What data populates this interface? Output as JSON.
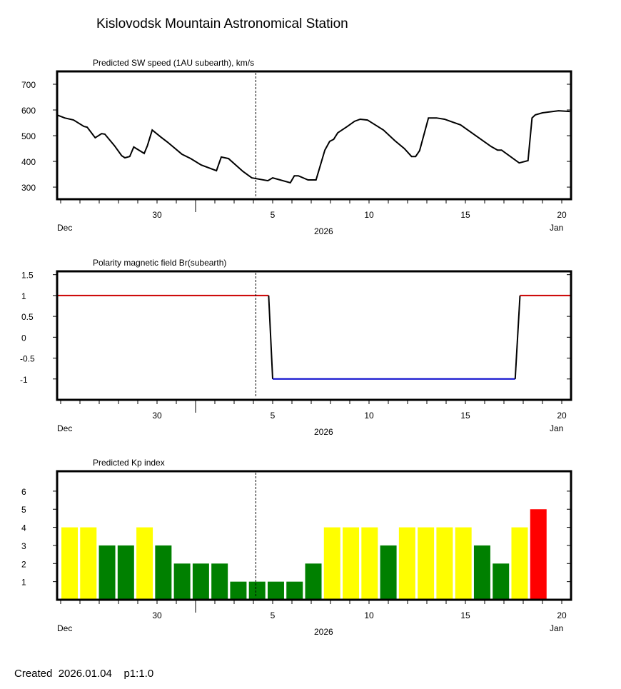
{
  "title": "Kislovodsk Mountain Astronomical Station",
  "footer": {
    "created_label": "Created",
    "date": "2026.01.04",
    "page": "p1:1.0"
  },
  "x_axis": {
    "range": [
      "2025-12-24T19:00",
      "2026-01-20T16:00"
    ],
    "tick_labels": [
      {
        "date": "2025-12-30",
        "label": "30"
      },
      {
        "date": "2026-01-05",
        "label": "5"
      },
      {
        "date": "2026-01-10",
        "label": "10"
      },
      {
        "date": "2026-01-15",
        "label": "15"
      },
      {
        "date": "2026-01-20",
        "label": "20"
      }
    ],
    "month_left": "Dec",
    "year": "2026",
    "month_right": "Jan",
    "current_time_marker": "2026-01-04T03:00"
  },
  "chart_data": [
    {
      "type": "line",
      "title": "Predicted SW speed (1AU subearth), km/s",
      "ylim": [
        253,
        750
      ],
      "yticks": [
        300,
        400,
        500,
        600,
        700
      ],
      "color": "#000000",
      "points": [
        [
          "2025-12-24T19:00",
          581
        ],
        [
          "2025-12-25T05:00",
          569
        ],
        [
          "2025-12-25T16:00",
          561
        ],
        [
          "2025-12-26T05:00",
          536
        ],
        [
          "2025-12-26T09:00",
          533
        ],
        [
          "2025-12-26T19:00",
          492
        ],
        [
          "2025-12-27T03:00",
          508
        ],
        [
          "2025-12-27T07:00",
          506
        ],
        [
          "2025-12-27T19:00",
          461
        ],
        [
          "2025-12-28T04:00",
          422
        ],
        [
          "2025-12-28T08:00",
          414
        ],
        [
          "2025-12-28T14:00",
          419
        ],
        [
          "2025-12-28T19:00",
          456
        ],
        [
          "2025-12-29T08:00",
          431
        ],
        [
          "2025-12-29T12:00",
          461
        ],
        [
          "2025-12-29T18:00",
          522
        ],
        [
          "2025-12-30T05:00",
          494
        ],
        [
          "2025-12-30T13:00",
          475
        ],
        [
          "2025-12-31T07:00",
          428
        ],
        [
          "2025-12-31T18:00",
          411
        ],
        [
          "2026-01-01T07:00",
          386
        ],
        [
          "2026-01-02T02:00",
          364
        ],
        [
          "2026-01-02T08:00",
          417
        ],
        [
          "2026-01-02T17:00",
          411
        ],
        [
          "2026-01-03T11:00",
          361
        ],
        [
          "2026-01-03T22:00",
          336
        ],
        [
          "2026-01-04T18:00",
          325
        ],
        [
          "2026-01-05T00:00",
          336
        ],
        [
          "2026-01-05T22:00",
          317
        ],
        [
          "2026-01-06T03:00",
          344
        ],
        [
          "2026-01-06T08:00",
          344
        ],
        [
          "2026-01-06T20:00",
          328
        ],
        [
          "2026-01-07T06:00",
          328
        ],
        [
          "2026-01-07T17:00",
          444
        ],
        [
          "2026-01-07T23:00",
          478
        ],
        [
          "2026-01-08T04:00",
          486
        ],
        [
          "2026-01-08T09:00",
          511
        ],
        [
          "2026-01-08T21:00",
          536
        ],
        [
          "2026-01-09T06:00",
          556
        ],
        [
          "2026-01-09T13:00",
          564
        ],
        [
          "2026-01-09T22:00",
          561
        ],
        [
          "2026-01-10T18:00",
          522
        ],
        [
          "2026-01-11T08:00",
          481
        ],
        [
          "2026-01-11T20:00",
          450
        ],
        [
          "2026-01-12T05:00",
          419
        ],
        [
          "2026-01-12T10:00",
          419
        ],
        [
          "2026-01-12T15:00",
          442
        ],
        [
          "2026-01-13T02:00",
          569
        ],
        [
          "2026-01-13T12:00",
          569
        ],
        [
          "2026-01-13T22:00",
          564
        ],
        [
          "2026-01-14T18:00",
          542
        ],
        [
          "2026-01-15T13:00",
          500
        ],
        [
          "2026-01-16T08:00",
          458
        ],
        [
          "2026-01-16T16:00",
          444
        ],
        [
          "2026-01-16T21:00",
          444
        ],
        [
          "2026-01-17T19:00",
          394
        ],
        [
          "2026-01-18T06:00",
          403
        ],
        [
          "2026-01-18T11:00",
          569
        ],
        [
          "2026-01-18T15:00",
          581
        ],
        [
          "2026-01-19T00:00",
          589
        ],
        [
          "2026-01-19T20:00",
          597
        ],
        [
          "2026-01-20T10:00",
          594
        ]
      ]
    },
    {
      "type": "line",
      "title": "Polarity magnetic field  Br(subearth)",
      "ylim": [
        -1.5,
        1.58
      ],
      "yticks": [
        {
          "v": -1,
          "label": "-1"
        },
        {
          "v": -0.5,
          "label": "-0.5"
        },
        {
          "v": 0,
          "label": "0"
        },
        {
          "v": 0.5,
          "label": "0.5"
        },
        {
          "v": 1,
          "label": "1"
        },
        {
          "v": 1.5,
          "label": "1.5"
        }
      ],
      "positive_color": "#CC0000",
      "negative_color": "#0000CC",
      "transition_color": "#000000",
      "points": [
        [
          "2025-12-24T19:00",
          1
        ],
        [
          "2026-01-04T19:00",
          1
        ],
        [
          "2026-01-05T00:00",
          -1
        ],
        [
          "2026-01-17T14:00",
          -1
        ],
        [
          "2026-01-17T20:00",
          1
        ],
        [
          "2026-01-20T16:00",
          1
        ]
      ]
    },
    {
      "type": "bar",
      "title": "Predicted Kp index",
      "ylim": [
        0,
        7.1
      ],
      "yticks": [
        1,
        2,
        3,
        4,
        5,
        6
      ],
      "colors": {
        "quiet": "#008000",
        "active": "#FFFF00",
        "storm": "#FF0000"
      },
      "categories": [
        "2025-12-25",
        "2025-12-26",
        "2025-12-27",
        "2025-12-28",
        "2025-12-29",
        "2025-12-30",
        "2025-12-31",
        "2026-01-01",
        "2026-01-02",
        "2026-01-03",
        "2026-01-04",
        "2026-01-05",
        "2026-01-06",
        "2026-01-07",
        "2026-01-08",
        "2026-01-09",
        "2026-01-10",
        "2026-01-11",
        "2026-01-12",
        "2026-01-13",
        "2026-01-14",
        "2026-01-15",
        "2026-01-16",
        "2026-01-17",
        "2026-01-18",
        "2026-01-19"
      ],
      "values": [
        4,
        4,
        3,
        3,
        4,
        3,
        2,
        2,
        2,
        1,
        1,
        1,
        1,
        2,
        4,
        4,
        4,
        3,
        4,
        4,
        4,
        4,
        3,
        2,
        4,
        5
      ]
    }
  ]
}
